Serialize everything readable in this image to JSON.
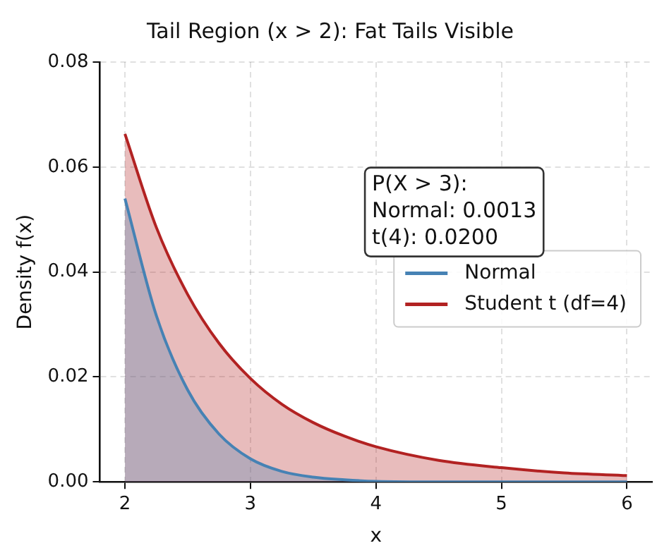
{
  "chart_data": {
    "type": "area",
    "title": "Tail Region (x > 2): Fat Tails Visible",
    "xlabel": "x",
    "ylabel": "Density f(x)",
    "x": [
      2,
      2.25,
      2.5,
      2.75,
      3,
      3.25,
      3.5,
      3.75,
      4,
      4.5,
      5,
      5.5,
      6
    ],
    "series": [
      {
        "name": "Normal",
        "color": "#4682b4",
        "values": [
          0.054,
          0.0317,
          0.0175,
          0.0091,
          0.0044,
          0.002,
          0.0009,
          0.0004,
          0.0001,
          0,
          0,
          0,
          0
        ]
      },
      {
        "name": "Student t (df=4)",
        "color": "#b22222",
        "values": [
          0.0663,
          0.0485,
          0.0357,
          0.0264,
          0.0197,
          0.0148,
          0.0113,
          0.0087,
          0.0067,
          0.0041,
          0.0027,
          0.0017,
          0.0012
        ]
      }
    ],
    "xlim": [
      1.8,
      6.2
    ],
    "xticks": [
      2,
      3,
      4,
      5,
      6
    ],
    "ylim": [
      0,
      0.08
    ],
    "yticks": [
      {
        "value": 0,
        "label": "0.00"
      },
      {
        "value": 0.02,
        "label": "0.02"
      },
      {
        "value": 0.04,
        "label": "0.04"
      },
      {
        "value": 0.06,
        "label": "0.06"
      },
      {
        "value": 0.08,
        "label": "0.08"
      }
    ],
    "grid": true,
    "legend": "right",
    "annotations": [
      "P(X > 3):\nNormal: 0.0013\nt(4): 0.0200"
    ]
  }
}
